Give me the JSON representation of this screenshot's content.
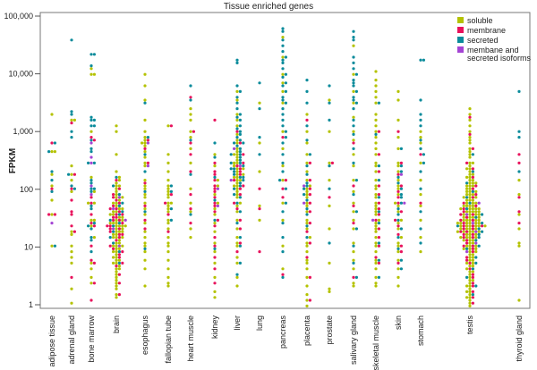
{
  "chart_data": {
    "type": "scatter",
    "subtype": "beeswarm",
    "title": "Tissue enriched genes",
    "xlabel": "",
    "ylabel": "FPKM",
    "yscale": "log",
    "ylim": [
      1,
      100000
    ],
    "yticks": [
      1,
      10,
      100,
      1000,
      10000,
      100000
    ],
    "ytick_labels": [
      "1",
      "10",
      "100",
      "1,000",
      "10,000",
      "100,000"
    ],
    "grid": false,
    "legend_position": "top-right",
    "series": [
      {
        "key": "s",
        "name": "soluble",
        "color": "#b4c200"
      },
      {
        "key": "m",
        "name": "membrane",
        "color": "#e8125c"
      },
      {
        "key": "x",
        "name": "secreted",
        "color": "#0a8b9b"
      },
      {
        "key": "i",
        "name": "membane and secreted isoforms",
        "color": "#a444d4"
      }
    ],
    "legend_lines": [
      [
        "soluble"
      ],
      [
        "membrane"
      ],
      [
        "secreted"
      ],
      [
        "membane and",
        "secreted isoforms"
      ]
    ],
    "categories": [
      {
        "name": "adipose tissue",
        "s": [
          2000,
          450,
          450,
          180,
          120,
          65,
          38,
          10.5
        ],
        "m": [
          600,
          100,
          38,
          38
        ],
        "x": [
          620,
          450,
          200,
          150,
          95,
          10.5
        ],
        "i": [
          26
        ]
      },
      {
        "name": "adrenal gland",
        "s": [
          1500,
          1600,
          250,
          180,
          140,
          90,
          18,
          16,
          10,
          8,
          7,
          5.5,
          1.9,
          1.1
        ],
        "m": [
          1400,
          190,
          100,
          65,
          40,
          37,
          24,
          18,
          2.9
        ],
        "x": [
          38000,
          2100,
          2000,
          950,
          800,
          190,
          120,
          100
        ],
        "i": []
      },
      {
        "name": "bone marrow",
        "s": [
          13000,
          9500,
          9500,
          1050,
          160,
          95,
          60,
          60,
          30,
          28,
          22,
          15,
          5,
          4,
          3,
          2.3
        ],
        "m": [
          800,
          750,
          70,
          58,
          38,
          25,
          22,
          10,
          6,
          5.5,
          2.5,
          1.2
        ],
        "x": [
          23000,
          22000,
          14000,
          1800,
          1600,
          1500,
          1300,
          1200,
          700,
          500,
          450,
          300,
          300,
          150,
          130,
          100,
          100,
          90,
          50,
          45,
          27,
          22,
          20,
          14,
          13,
          8.5
        ],
        "i": [
          650,
          350,
          280,
          115,
          80
        ]
      },
      {
        "name": "brain",
        "s": [
          1.3,
          1.5,
          1.8,
          2,
          2.3,
          2.6,
          3,
          3.3,
          3.6,
          4,
          4.3,
          4.6,
          5,
          5.3,
          5.6,
          6,
          6.5,
          7,
          7.5,
          8,
          8.5,
          9,
          9.5,
          10,
          10.5,
          11,
          12,
          12,
          13,
          14,
          15,
          15,
          16,
          17,
          18,
          18,
          19,
          20,
          21,
          22,
          22,
          23,
          24,
          25,
          26,
          27,
          28,
          30,
          32,
          34,
          36,
          38,
          40,
          42,
          45,
          48,
          50,
          55,
          60,
          65,
          70,
          75,
          80,
          90,
          100,
          110,
          120,
          130,
          150,
          170,
          200,
          400,
          1000,
          1300
        ],
        "m": [
          1.5,
          2.5,
          3.5,
          4.5,
          5.5,
          6.5,
          7.5,
          8.5,
          9.5,
          11,
          12.5,
          14,
          16,
          17,
          19,
          20,
          21,
          23,
          24,
          26,
          28,
          29,
          31,
          33,
          35,
          37,
          40,
          44,
          48,
          52,
          58,
          64,
          72,
          85,
          100,
          140
        ],
        "x": [
          5,
          8,
          12,
          15,
          18,
          22,
          25,
          30,
          35,
          42,
          50,
          60,
          80,
          120,
          160
        ],
        "i": [
          10,
          20,
          30,
          45,
          70
        ]
      },
      {
        "name": "esophagus",
        "s": [
          10000,
          6000,
          3500,
          1500,
          1000,
          800,
          700,
          650,
          600,
          550,
          450,
          350,
          300,
          250,
          150,
          120,
          100,
          80,
          70,
          60,
          45,
          35,
          25,
          18,
          15,
          12,
          10,
          8,
          6,
          4,
          2.2
        ],
        "m": [
          700,
          500,
          300,
          130,
          50,
          30,
          20
        ],
        "x": [
          3000,
          800,
          400,
          200,
          90,
          40,
          9
        ],
        "i": [
          600,
          250
        ]
      },
      {
        "name": "fallopian tube",
        "s": [
          1200,
          400,
          300,
          200,
          150,
          120,
          100,
          90,
          80,
          70,
          60,
          55,
          50,
          45,
          40,
          30,
          25,
          20,
          15,
          12,
          10,
          8,
          6,
          4,
          3,
          2.5,
          2
        ],
        "m": [
          1200,
          80,
          60,
          35,
          18
        ],
        "x": [
          120,
          90,
          45,
          30
        ],
        "i": []
      },
      {
        "name": "heart muscle",
        "s": [
          2500,
          2000,
          1500,
          1000,
          800,
          500,
          300,
          100,
          60,
          40,
          20,
          15
        ],
        "m": [
          4000,
          1000,
          600,
          400,
          200,
          80,
          45,
          25
        ],
        "x": [
          6500,
          3500,
          700,
          180,
          35
        ],
        "i": []
      },
      {
        "name": "kidney",
        "s": [
          400,
          250,
          150,
          120,
          80,
          60,
          45,
          35,
          25,
          18,
          12,
          8,
          5,
          3,
          1.7,
          1.3
        ],
        "m": [
          1500,
          300,
          200,
          180,
          140,
          110,
          100,
          90,
          70,
          55,
          50,
          40,
          30,
          22,
          15,
          11,
          7,
          4,
          2.5
        ],
        "x": [
          600,
          350,
          160,
          65,
          28,
          9
        ],
        "i": [
          100,
          50
        ]
      },
      {
        "name": "liver",
        "s": [
          5000,
          3500,
          2000,
          1500,
          1200,
          900,
          700,
          600,
          500,
          450,
          400,
          380,
          350,
          320,
          300,
          280,
          260,
          240,
          220,
          200,
          190,
          180,
          170,
          160,
          150,
          140,
          130,
          120,
          110,
          100,
          90,
          80,
          70,
          60,
          50,
          40,
          30,
          20,
          15,
          12,
          10,
          7,
          5,
          3,
          2
        ],
        "m": [
          1000,
          600,
          400,
          300,
          250,
          220,
          200,
          180,
          150,
          120,
          100,
          80,
          60,
          45,
          30,
          20,
          12,
          8
        ],
        "x": [
          18000,
          16000,
          6000,
          5000,
          4000,
          3000,
          2500,
          2000,
          1800,
          1500,
          1300,
          1100,
          1000,
          900,
          800,
          700,
          650,
          600,
          550,
          500,
          450,
          400,
          380,
          350,
          320,
          300,
          280,
          260,
          240,
          220,
          200,
          180,
          170,
          160,
          150,
          130,
          110,
          100,
          85,
          70,
          55,
          40,
          25,
          15,
          10,
          5,
          3.5
        ],
        "i": [
          500,
          250,
          150
        ]
      },
      {
        "name": "lung",
        "s": [
          3000,
          600,
          200,
          50,
          30
        ],
        "m": [
          100,
          45,
          8
        ],
        "x": [
          7000,
          2500,
          800,
          400
        ],
        "i": []
      },
      {
        "name": "pancreas",
        "s": [
          45000,
          20000,
          10000,
          7000,
          5000,
          3000,
          1000,
          500,
          250,
          150,
          60,
          30,
          10,
          4
        ],
        "m": [
          800,
          150,
          100,
          70,
          3.5
        ],
        "x": [
          60000,
          55000,
          40000,
          30000,
          25000,
          20000,
          18000,
          15000,
          12000,
          10000,
          9000,
          7000,
          6000,
          5000,
          4000,
          3500,
          3000,
          2500,
          2000,
          1500,
          1200,
          1000,
          800,
          600,
          400,
          300,
          200,
          150,
          100,
          60,
          40,
          25,
          15,
          8,
          3
        ],
        "i": []
      },
      {
        "name": "placenta",
        "s": [
          2000,
          1000,
          600,
          400,
          300,
          200,
          150,
          120,
          100,
          90,
          80,
          70,
          60,
          50,
          40,
          30,
          25,
          20,
          15,
          12,
          10,
          8,
          6,
          5,
          4,
          3,
          2,
          1.5,
          1.2,
          1
        ],
        "m": [
          1500,
          300,
          150,
          100,
          80,
          60,
          40,
          25,
          18,
          12,
          7,
          3,
          1.2
        ],
        "x": [
          8000,
          5000,
          3000,
          1200,
          700,
          400,
          250,
          180,
          130,
          110,
          100,
          85,
          65,
          45,
          35,
          22,
          14
        ],
        "i": [
          120,
          60
        ]
      },
      {
        "name": "prostate",
        "s": [
          3500,
          1000,
          300,
          150,
          50,
          20,
          5,
          1.8,
          1.6
        ],
        "m": [
          300,
          70
        ],
        "x": [
          6000,
          3000,
          1500,
          250,
          100,
          12
        ],
        "i": []
      },
      {
        "name": "salivary gland",
        "s": [
          30000,
          10000,
          5000,
          3000,
          1800,
          1000,
          700,
          400,
          250,
          150,
          90,
          60,
          40,
          30,
          20,
          12,
          8,
          6,
          4,
          2.5,
          2
        ],
        "m": [
          600,
          120,
          50,
          25,
          3
        ],
        "x": [
          55000,
          45000,
          38000,
          20000,
          15000,
          12000,
          10000,
          8000,
          7000,
          6000,
          5000,
          4000,
          3500,
          3000,
          2500,
          1500,
          1200,
          900,
          500,
          300,
          150,
          80,
          40,
          20,
          10,
          5,
          3
        ],
        "i": []
      },
      {
        "name": "skeletal muscle",
        "s": [
          11000,
          8000,
          6000,
          5000,
          4000,
          3000,
          2000,
          1500,
          1200,
          1000,
          800,
          600,
          500,
          400,
          300,
          250,
          200,
          150,
          120,
          100,
          80,
          70,
          60,
          50,
          45,
          40,
          35,
          30,
          25,
          22,
          20,
          18,
          15,
          12,
          10,
          8,
          6,
          5,
          4,
          3,
          2.5,
          2
        ],
        "m": [
          1000,
          400,
          200,
          120,
          80,
          60,
          45,
          35,
          28,
          20,
          15,
          10,
          7,
          5
        ],
        "x": [
          3000,
          900,
          250,
          150,
          70,
          40,
          25,
          12,
          6,
          3
        ],
        "i": [
          30
        ]
      },
      {
        "name": "skin",
        "s": [
          5000,
          3500,
          1500,
          800,
          500,
          300,
          250,
          200,
          150,
          120,
          100,
          80,
          60,
          50,
          40,
          30,
          25,
          20,
          15,
          12,
          10,
          8,
          6,
          4,
          3,
          2
        ],
        "m": [
          1000,
          300,
          180,
          120,
          90,
          70,
          55,
          40,
          30,
          22,
          16,
          11,
          8,
          5
        ],
        "x": [
          500,
          250,
          200,
          160,
          130,
          100,
          85,
          70,
          55,
          45,
          35,
          28,
          20,
          14,
          9,
          6,
          4
        ],
        "i": [
          180,
          60
        ]
      },
      {
        "name": "stomach",
        "s": [
          1000,
          800,
          600,
          300,
          150,
          80,
          50,
          30,
          15,
          8
        ],
        "m": [
          400,
          60
        ],
        "x": [
          18000,
          18000,
          3500,
          2000,
          1500,
          1200,
          700,
          500,
          400,
          300,
          200,
          100,
          40,
          20,
          12
        ],
        "i": []
      },
      {
        "name": "testis",
        "s": [
          2500,
          2000,
          1500,
          1200,
          1000,
          800,
          700,
          600,
          500,
          450,
          400,
          350,
          300,
          280,
          260,
          240,
          220,
          200,
          190,
          180,
          170,
          160,
          150,
          140,
          135,
          130,
          125,
          120,
          115,
          110,
          105,
          100,
          96,
          92,
          88,
          85,
          82,
          78,
          75,
          72,
          70,
          68,
          65,
          62,
          60,
          58,
          56,
          54,
          52,
          50,
          49,
          48,
          47,
          46,
          45,
          44,
          43,
          42,
          41,
          40,
          39,
          38,
          37,
          36,
          35,
          34,
          33,
          32,
          31,
          30,
          29.5,
          29,
          28.5,
          28,
          27.5,
          27,
          26.5,
          26,
          25.5,
          25,
          24.5,
          24,
          23.5,
          23,
          22.5,
          22,
          21.5,
          21,
          20.5,
          20,
          19.5,
          19,
          18.5,
          18,
          17.5,
          17,
          16.5,
          16,
          15.5,
          15,
          14.5,
          14,
          13.5,
          13,
          12.5,
          12,
          11.5,
          11,
          10.5,
          10,
          9.6,
          9.2,
          8.8,
          8.4,
          8,
          7.6,
          7.2,
          6.8,
          6.4,
          6,
          5.7,
          5.4,
          5.1,
          4.8,
          4.5,
          4.2,
          3.9,
          3.6,
          3.3,
          3,
          2.8,
          2.6,
          2.4,
          2.2,
          2,
          1.8,
          1.7,
          1.6,
          1.5,
          1.4,
          1.3,
          1.2,
          1.1,
          1
        ],
        "m": [
          1800,
          900,
          500,
          300,
          220,
          160,
          120,
          100,
          85,
          70,
          60,
          52,
          46,
          42,
          38,
          35,
          32,
          30,
          28,
          26,
          24,
          23,
          22,
          21,
          20,
          19,
          18,
          17,
          16,
          15,
          14,
          13,
          12,
          11,
          10,
          9,
          8,
          7,
          6,
          5,
          4,
          3.5,
          3,
          2.5,
          2,
          1.6,
          1.3,
          1.1
        ],
        "x": [
          400,
          200,
          130,
          90,
          70,
          55,
          45,
          38,
          32,
          27,
          24,
          21,
          19,
          17,
          15,
          13,
          11,
          9,
          7,
          5.5,
          4,
          3,
          2.2,
          1.5
        ],
        "i": [
          60,
          35,
          25,
          18,
          12,
          8
        ]
      },
      {
        "name": "thyroid gland",
        "s": [
          150,
          80,
          35,
          20,
          12,
          10,
          1.2
        ],
        "m": [
          400,
          300,
          70,
          40,
          25
        ],
        "x": [
          5000,
          1000,
          800,
          200
        ],
        "i": []
      }
    ]
  }
}
